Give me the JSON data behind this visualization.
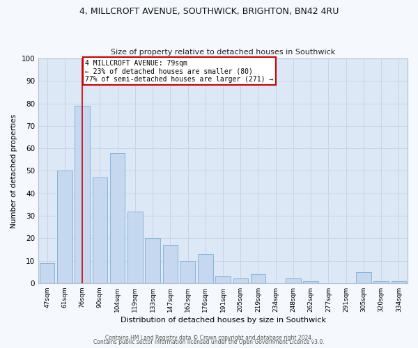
{
  "title1": "4, MILLCROFT AVENUE, SOUTHWICK, BRIGHTON, BN42 4RU",
  "title2": "Size of property relative to detached houses in Southwick",
  "xlabel": "Distribution of detached houses by size in Southwick",
  "ylabel": "Number of detached properties",
  "categories": [
    "47sqm",
    "61sqm",
    "76sqm",
    "90sqm",
    "104sqm",
    "119sqm",
    "133sqm",
    "147sqm",
    "162sqm",
    "176sqm",
    "191sqm",
    "205sqm",
    "219sqm",
    "234sqm",
    "248sqm",
    "262sqm",
    "277sqm",
    "291sqm",
    "305sqm",
    "320sqm",
    "334sqm"
  ],
  "values": [
    9,
    50,
    79,
    47,
    58,
    32,
    20,
    17,
    10,
    13,
    3,
    2,
    4,
    0,
    2,
    1,
    0,
    0,
    5,
    1,
    1
  ],
  "bar_color": "#c5d8f0",
  "bar_edge_color": "#7bafd4",
  "property_bar_index": 2,
  "vline_color": "#cc0000",
  "annotation_text": "4 MILLCROFT AVENUE: 79sqm\n← 23% of detached houses are smaller (80)\n77% of semi-detached houses are larger (271) →",
  "annotation_box_color": "#ffffff",
  "annotation_box_edge_color": "#cc0000",
  "ylim": [
    0,
    100
  ],
  "yticks": [
    0,
    10,
    20,
    30,
    40,
    50,
    60,
    70,
    80,
    90,
    100
  ],
  "grid_color": "#c8d4e8",
  "bg_color": "#dce8f5",
  "fig_bg_color": "#f5f8fc",
  "footer1": "Contains HM Land Registry data © Crown copyright and database right 2024.",
  "footer2": "Contains public sector information licensed under the Open Government Licence v3.0."
}
